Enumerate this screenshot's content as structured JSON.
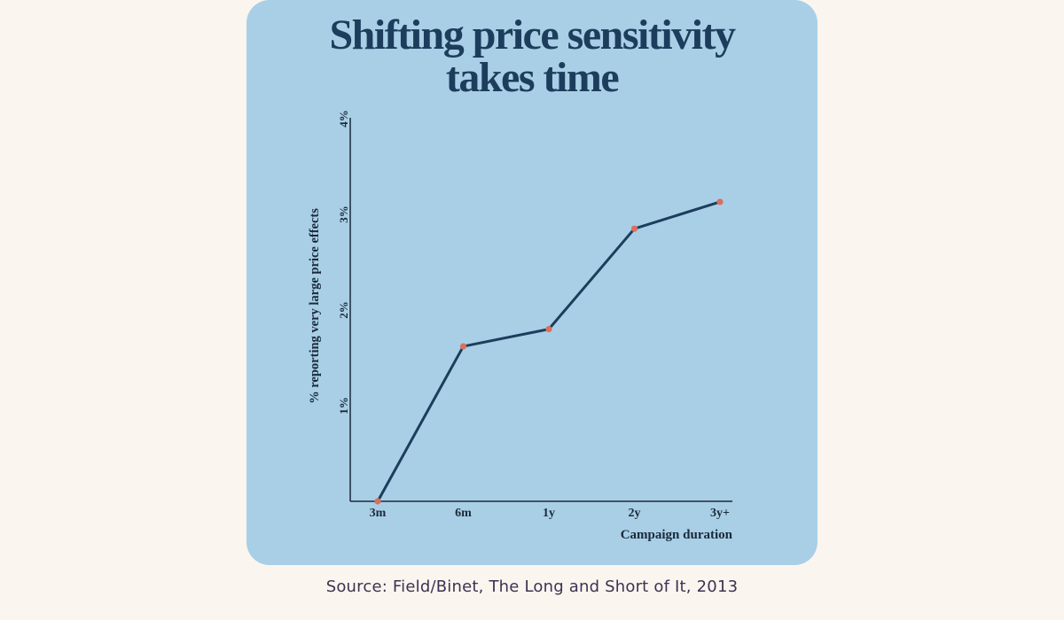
{
  "source_text": "Source: Field/Binet,  The Long and Short of It, 2013",
  "colors": {
    "card_background": "#a9cfe7",
    "page_background": "#faf6ef",
    "title": "#1d3d5c",
    "line": "#1d3d5c",
    "marker": "#d9705c",
    "axis": "#1a2a3a"
  },
  "chart_data": {
    "type": "line",
    "title": "Shifting price sensitivity takes time",
    "title_lines": [
      "Shifting price sensitivity",
      "takes time"
    ],
    "xlabel": "Campaign duration",
    "ylabel": "% reporting very large price effects",
    "categories": [
      "3m",
      "6m",
      "1y",
      "2y",
      "3y+"
    ],
    "series": [
      {
        "name": "% reporting very large price effects",
        "values": [
          0,
          1.62,
          1.8,
          2.85,
          3.13
        ]
      }
    ],
    "y_ticks": [
      1,
      2,
      3,
      4
    ],
    "y_tick_labels": [
      "1%",
      "2%",
      "3%",
      "4%"
    ],
    "ylim": [
      0,
      4
    ],
    "grid": false,
    "legend": "none"
  }
}
